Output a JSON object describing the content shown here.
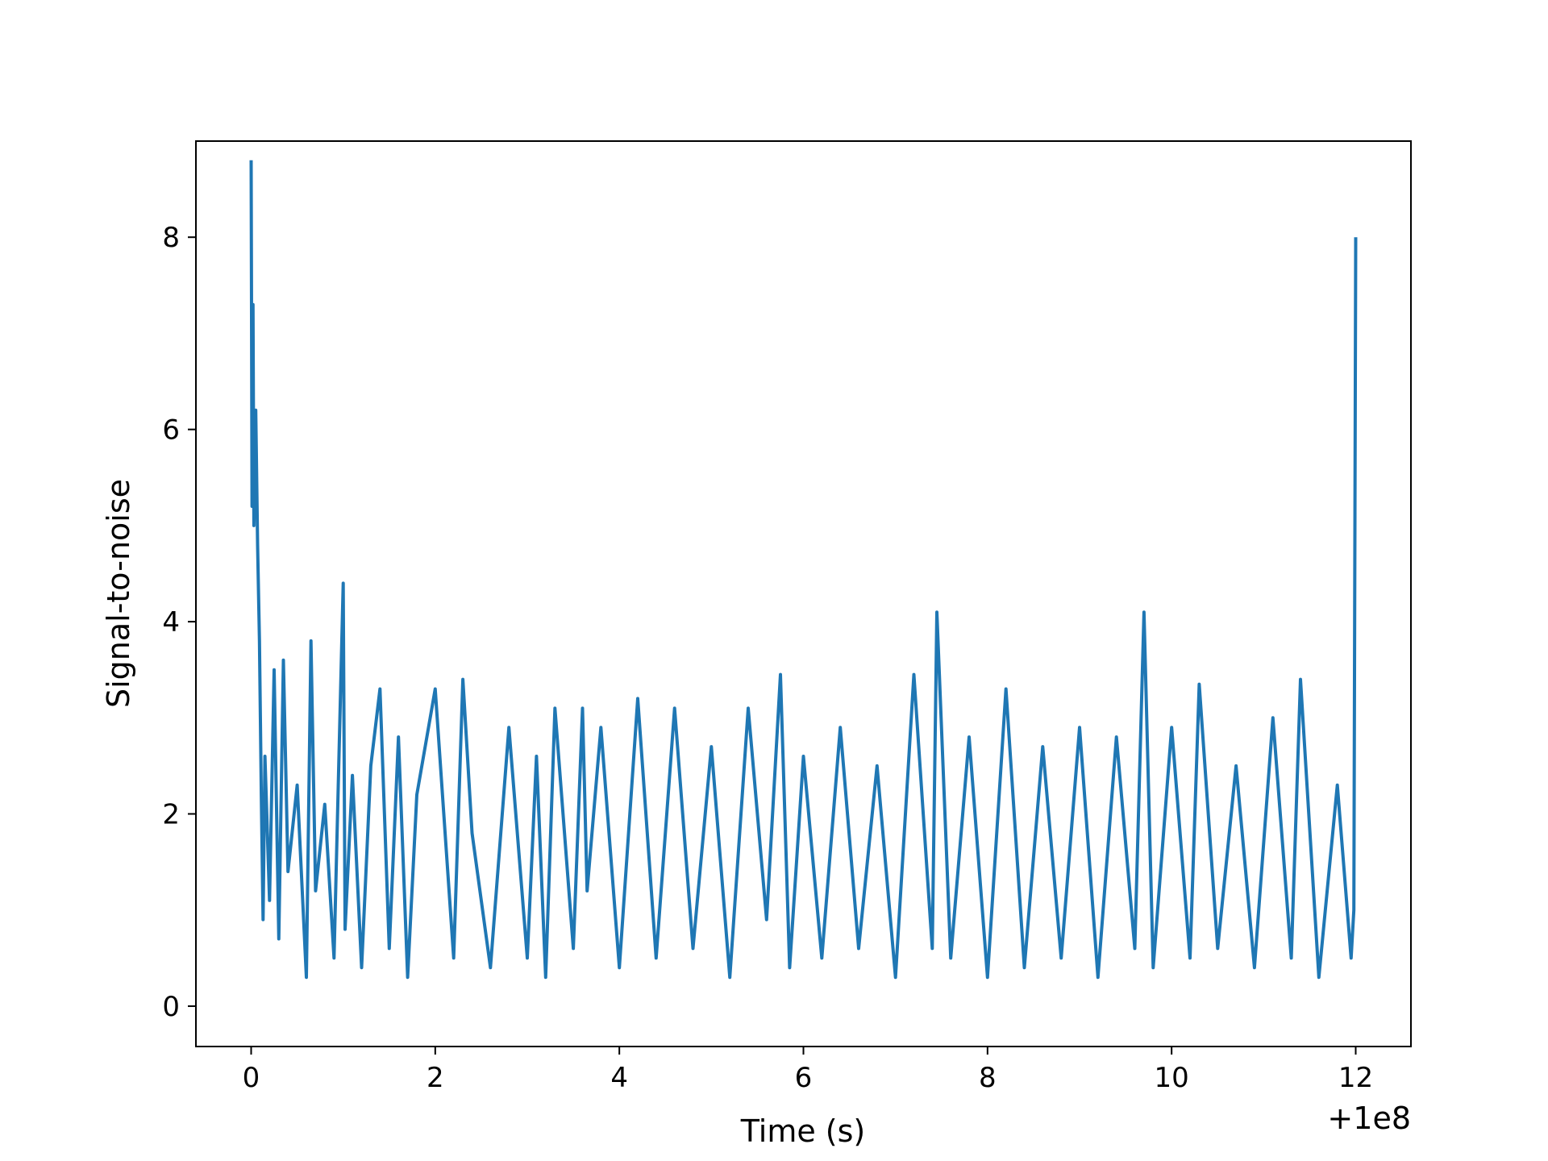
{
  "chart_data": {
    "type": "line",
    "title": "",
    "xlabel": "Time (s)",
    "ylabel": "Signal-to-noise",
    "x_offset_label": "+1e8",
    "xlim": [
      -0.6,
      12.6
    ],
    "ylim": [
      -0.42,
      9.0
    ],
    "x_ticks": [
      0,
      2,
      4,
      6,
      8,
      10,
      12
    ],
    "y_ticks": [
      0,
      2,
      4,
      6,
      8
    ],
    "grid": false,
    "line_color": "#1f77b4",
    "x_range_note": "x values are seconds offset from 1e8; data spans 0 to 12 s",
    "series": [
      {
        "x": [
          0.0,
          0.01,
          0.02,
          0.03,
          0.05,
          0.07,
          0.09,
          0.11,
          0.13,
          0.15,
          0.2,
          0.25,
          0.3,
          0.35,
          0.4,
          0.5,
          0.6,
          0.65,
          0.7,
          0.8,
          0.9,
          1.0,
          1.02,
          1.1,
          1.2,
          1.3,
          1.4,
          1.5,
          1.6,
          1.7,
          1.8,
          2.0,
          2.2,
          2.3,
          2.4,
          2.6,
          2.8,
          3.0,
          3.1,
          3.2,
          3.3,
          3.5,
          3.6,
          3.65,
          3.8,
          4.0,
          4.2,
          4.4,
          4.6,
          4.8,
          5.0,
          5.2,
          5.4,
          5.6,
          5.75,
          5.85,
          6.0,
          6.2,
          6.4,
          6.6,
          6.8,
          7.0,
          7.2,
          7.4,
          7.45,
          7.6,
          7.8,
          8.0,
          8.2,
          8.4,
          8.6,
          8.8,
          9.0,
          9.2,
          9.4,
          9.6,
          9.7,
          9.8,
          10.0,
          10.2,
          10.3,
          10.5,
          10.7,
          10.9,
          11.1,
          11.3,
          11.4,
          11.6,
          11.8,
          11.95,
          11.98,
          12.0
        ],
        "y": [
          8.8,
          5.2,
          7.3,
          5.0,
          6.2,
          4.8,
          3.8,
          2.2,
          0.9,
          2.6,
          1.1,
          3.5,
          0.7,
          3.6,
          1.4,
          2.3,
          0.3,
          3.8,
          1.2,
          2.1,
          0.5,
          4.4,
          0.8,
          2.4,
          0.4,
          2.5,
          3.3,
          0.6,
          2.8,
          0.3,
          2.2,
          3.3,
          0.5,
          3.4,
          1.8,
          0.4,
          2.9,
          0.5,
          2.6,
          0.3,
          3.1,
          0.6,
          3.1,
          1.2,
          2.9,
          0.4,
          3.2,
          0.5,
          3.1,
          0.6,
          2.7,
          0.3,
          3.1,
          0.9,
          3.45,
          0.4,
          2.6,
          0.5,
          2.9,
          0.6,
          2.5,
          0.3,
          3.45,
          0.6,
          4.1,
          0.5,
          2.8,
          0.3,
          3.3,
          0.4,
          2.7,
          0.5,
          2.9,
          0.3,
          2.8,
          0.6,
          4.1,
          0.4,
          2.9,
          0.5,
          3.35,
          0.6,
          2.5,
          0.4,
          3.0,
          0.5,
          3.4,
          0.3,
          2.3,
          0.5,
          1.0,
          8.0
        ]
      }
    ]
  }
}
